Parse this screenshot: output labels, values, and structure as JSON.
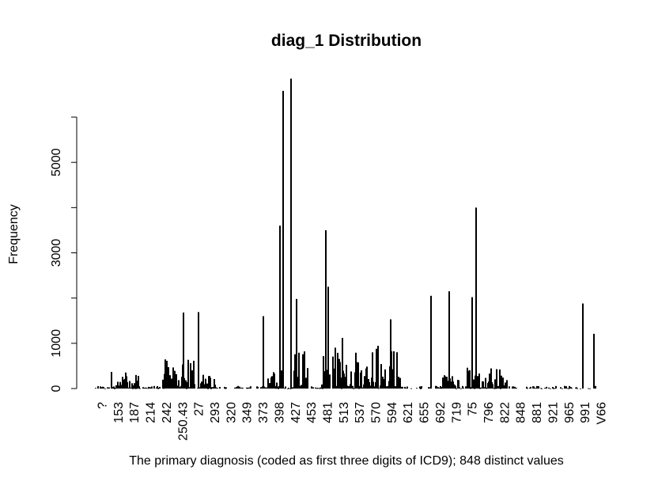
{
  "chart_data": {
    "type": "bar",
    "title": "diag_1 Distribution",
    "xlabel": "The primary diagnosis (coded as first three digits of ICD9); 848 distinct values",
    "ylabel": "Frequency",
    "ylim": [
      0,
      6900
    ],
    "y_ticks": [
      0,
      1000,
      2000,
      3000,
      4000,
      5000,
      6000
    ],
    "y_tick_labels": [
      "0",
      "1000",
      "",
      "3000",
      "",
      "5000",
      ""
    ],
    "x_tick_labels": [
      "?",
      "153",
      "187",
      "214",
      "242",
      "250.43",
      "27",
      "293",
      "320",
      "349",
      "373",
      "398",
      "427",
      "453",
      "481",
      "513",
      "537",
      "570",
      "594",
      "621",
      "655",
      "692",
      "719",
      "75",
      "796",
      "822",
      "848",
      "881",
      "921",
      "965",
      "991",
      "V66"
    ],
    "notable_values": {
      "highest_spike": 6850,
      "second_spike": 6580,
      "other_peaks": [
        4000,
        3600,
        3500,
        2250,
        2150,
        2050,
        2020,
        1980,
        1880,
        1690,
        1680,
        1600,
        1530,
        1210,
        1120
      ]
    }
  }
}
